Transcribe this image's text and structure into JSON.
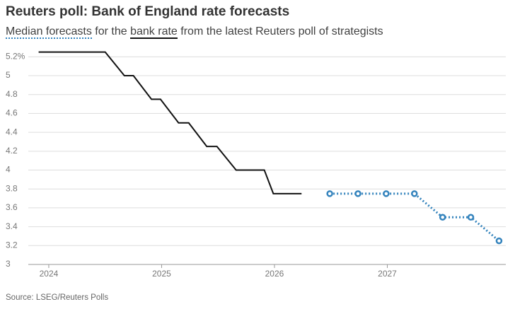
{
  "chart_data": {
    "type": "line",
    "title": "Reuters poll: Bank of England rate forecasts",
    "subtitle_joiners": [
      "for the",
      "from the latest Reuters poll of strategists"
    ],
    "source": "Source: LSEG/Reuters Polls",
    "series": [
      {
        "name": "bank rate",
        "color": "#111111",
        "style": "solid",
        "markers": false,
        "x": [
          2023.91,
          2024.5,
          2024.67,
          2024.75,
          2024.91,
          2024.99,
          2025.15,
          2025.24,
          2025.4,
          2025.49,
          2025.66,
          2025.91,
          2025.99,
          2026.24
        ],
        "values": [
          5.25,
          5.25,
          5.0,
          5.0,
          4.75,
          4.75,
          4.5,
          4.5,
          4.25,
          4.25,
          4.0,
          4.0,
          3.75,
          3.75
        ]
      },
      {
        "name": "Median forecasts",
        "color": "#3584bd",
        "style": "dotted",
        "markers": true,
        "x": [
          2026.49,
          2026.74,
          2026.99,
          2027.24,
          2027.49,
          2027.74,
          2027.99
        ],
        "values": [
          3.75,
          3.75,
          3.75,
          3.75,
          3.5,
          3.5,
          3.25
        ]
      }
    ],
    "xlim": [
      2023.9,
      2028.05
    ],
    "xticks": [
      2024,
      2025,
      2026,
      2027
    ],
    "ylim": [
      3,
      5.3
    ],
    "yticks": [
      3,
      3.2,
      3.4,
      3.6,
      3.8,
      4,
      4.2,
      4.4,
      4.6,
      4.8,
      5,
      {
        "value": 5.2,
        "label": "5.2%"
      }
    ],
    "grid": true
  }
}
